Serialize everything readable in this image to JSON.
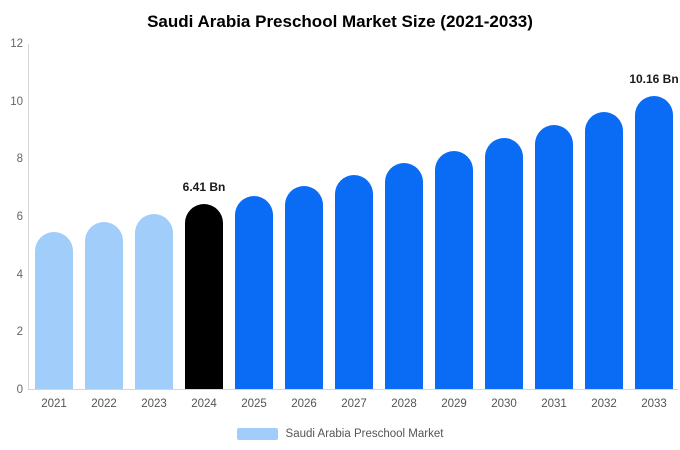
{
  "chart_data": {
    "type": "bar",
    "title": "Saudi Arabia Preschool Market Size (2021-2033)",
    "categories": [
      "2021",
      "2022",
      "2023",
      "2024",
      "2025",
      "2026",
      "2027",
      "2028",
      "2029",
      "2030",
      "2031",
      "2032",
      "2033"
    ],
    "values": [
      5.45,
      5.8,
      6.08,
      6.41,
      6.7,
      7.05,
      7.43,
      7.85,
      8.25,
      8.7,
      9.14,
      9.62,
      10.16
    ],
    "unit": "Bn",
    "bar_colors": [
      "#A1CDFB",
      "#A1CDFB",
      "#A1CDFB",
      "#000000",
      "#0A6CF5",
      "#0A6CF5",
      "#0A6CF5",
      "#0A6CF5",
      "#0A6CF5",
      "#0A6CF5",
      "#0A6CF5",
      "#0A6CF5",
      "#0A6CF5"
    ],
    "value_labels": [
      {
        "category": "2024",
        "text": "6.41 Bn"
      },
      {
        "category": "2033",
        "text": "10.16 Bn"
      }
    ],
    "ylim": [
      0,
      12
    ],
    "yticks": [
      0,
      2,
      4,
      6,
      8,
      10,
      12
    ],
    "grid": false,
    "legend": {
      "position": "bottom",
      "label": "Saudi Arabia Preschool Market",
      "swatch_color": "#A1CDFB"
    }
  },
  "colors": {
    "background": "#FFFFFF",
    "axis_line": "#D6D6D6",
    "tick_text": "#666666",
    "year_text": "#555555",
    "legend_text": "#555555",
    "title_text": "#000000",
    "value_label_text": "#1A1A1A",
    "series_light_blue": "#A1CDFB",
    "series_blue": "#0A6CF5",
    "series_black": "#000000"
  }
}
